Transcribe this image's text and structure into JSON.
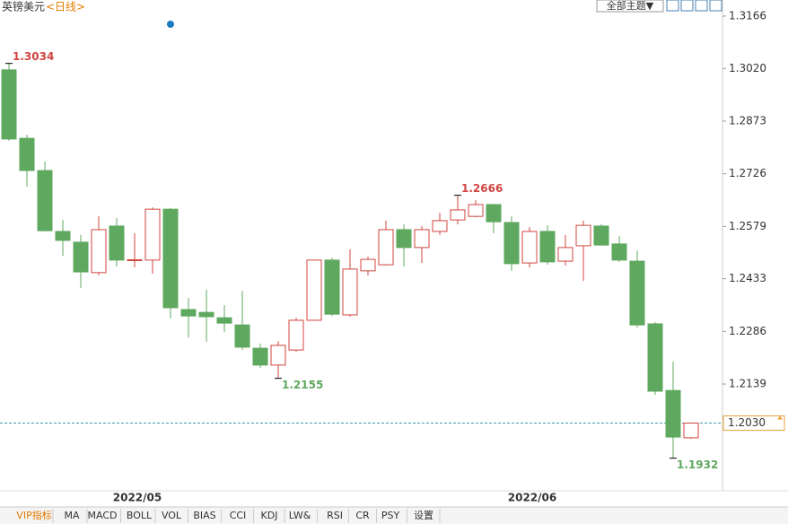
{
  "chart_data": {
    "type": "candlestick",
    "title": "英镑美元",
    "subtitle": "<日线>",
    "categories": [
      null,
      null,
      null,
      null,
      null,
      null,
      null,
      "2022/05",
      null,
      null,
      null,
      null,
      null,
      null,
      null,
      null,
      null,
      null,
      null,
      null,
      null,
      null,
      null,
      null,
      null,
      null,
      null,
      null,
      null,
      "2022/06",
      null,
      null,
      null,
      null,
      null,
      null,
      null,
      null,
      null
    ],
    "open": [
      1.3016,
      1.2825,
      1.2735,
      1.2565,
      1.2535,
      1.245,
      1.258,
      1.2484,
      1.2485,
      1.2627,
      1.2347,
      1.2339,
      1.2324,
      1.2304,
      1.2239,
      1.2192,
      1.2234,
      1.2317,
      1.2485,
      1.2332,
      1.2455,
      1.2472,
      1.257,
      1.252,
      1.2565,
      1.2597,
      1.2607,
      1.264,
      1.259,
      1.2477,
      1.2565,
      1.2482,
      1.2525,
      1.258,
      1.253,
      1.2482,
      1.2307,
      1.2121,
      1.1989
    ],
    "high": [
      1.3034,
      1.2835,
      1.276,
      1.2597,
      1.2555,
      1.2607,
      1.2602,
      1.256,
      1.2632,
      1.263,
      1.2379,
      1.2402,
      1.2359,
      1.2399,
      1.2252,
      1.2259,
      1.2324,
      1.2487,
      1.2492,
      1.2515,
      1.2495,
      1.2595,
      1.2585,
      1.258,
      1.2617,
      1.2666,
      1.2652,
      1.2642,
      1.2607,
      1.2577,
      1.2582,
      1.2555,
      1.2595,
      1.2585,
      1.2552,
      1.2512,
      1.2312,
      1.2202,
      1.203
    ],
    "low": [
      1.2818,
      1.269,
      1.2567,
      1.2497,
      1.2407,
      1.2442,
      1.2467,
      1.2465,
      1.2447,
      1.2322,
      1.2269,
      1.2257,
      1.2284,
      1.2234,
      1.2184,
      1.2155,
      1.2229,
      1.2317,
      1.2329,
      1.2327,
      1.2442,
      1.247,
      1.2467,
      1.2477,
      1.2555,
      1.2585,
      1.2605,
      1.256,
      1.2455,
      1.2465,
      1.2472,
      1.247,
      1.2427,
      1.2525,
      1.248,
      1.2297,
      1.2109,
      1.1932,
      1.1986
    ],
    "close": [
      1.2823,
      1.2735,
      1.2567,
      1.254,
      1.2452,
      1.257,
      1.2485,
      1.2486,
      1.2627,
      1.2352,
      1.2329,
      1.2327,
      1.2309,
      1.2242,
      1.2192,
      1.2247,
      1.2317,
      1.2485,
      1.2334,
      1.246,
      1.2487,
      1.257,
      1.252,
      1.257,
      1.2595,
      1.2625,
      1.264,
      1.2592,
      1.2475,
      1.2565,
      1.248,
      1.252,
      1.2582,
      1.2527,
      1.2485,
      1.2304,
      1.2119,
      1.1991,
      1.203
    ],
    "up_color": "#d0453f",
    "down_color": "#5fa85f",
    "ylim": [
      1.1841,
      1.3211
    ],
    "yticks": [
      1.3166,
      {
        "value": 1.302,
        "label": "1.3020"
      },
      1.2873,
      1.2726,
      1.2579,
      1.2433,
      1.2286,
      1.2139
    ],
    "current_price": {
      "value": 1.203,
      "label": "1.2030"
    }
  },
  "toolbar": {
    "theme_button": "全部主题▼",
    "tabs": [
      "VIP指标",
      "MA",
      "MACD",
      "BOLL",
      "VOL",
      "BIAS",
      "CCI",
      "KDJ",
      "LW&",
      "RSI",
      "CR",
      "PSY",
      "设置"
    ]
  }
}
